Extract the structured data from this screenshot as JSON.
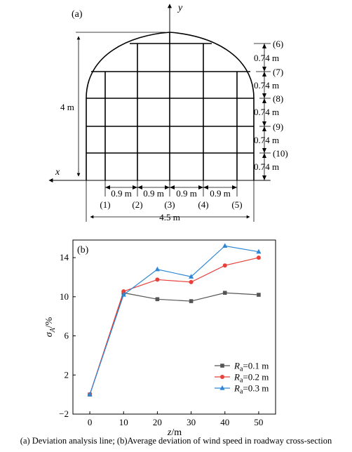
{
  "caption": "(a) Deviation analysis line; (b)Average deviation of wind speed in roadway cross-section",
  "panel_a": {
    "label": "(a)",
    "axis_y": "y",
    "axis_x": "x",
    "height_label": "4 m",
    "width_label": "4.5 m",
    "vertical_lines": [
      {
        "id": "(1)",
        "spacing_label": "0.9 m"
      },
      {
        "id": "(2)",
        "spacing_label": "0.9 m"
      },
      {
        "id": "(3)",
        "spacing_label": "0.9 m"
      },
      {
        "id": "(4)",
        "spacing_label": "0.9 m"
      },
      {
        "id": "(5)"
      }
    ],
    "horizontal_lines": [
      {
        "id": "(6)"
      },
      {
        "id": "(7)",
        "spacing_label": "0.74 m"
      },
      {
        "id": "(8)",
        "spacing_label": "0.74 m"
      },
      {
        "id": "(9)",
        "spacing_label": "0.74 m"
      },
      {
        "id": "(10)",
        "spacing_label": "0.74 m"
      }
    ],
    "bottom_spacing_label": "0.74 m"
  },
  "panel_b": {
    "label": "(b)",
    "chart_data": {
      "type": "line",
      "xlabel_main": "z",
      "xlabel_unit": "/m",
      "ylabel_main": "σ",
      "ylabel_sub": "A",
      "ylabel_unit": "/%",
      "xlim": [
        -5,
        55
      ],
      "ylim": [
        -2,
        15.8
      ],
      "xticks": [
        0,
        10,
        20,
        30,
        40,
        50
      ],
      "yticks": [
        -2,
        2,
        6,
        10,
        14
      ],
      "grid": false,
      "legend_position": "bottom-right",
      "x": [
        0,
        10,
        20,
        30,
        40,
        50
      ],
      "series": [
        {
          "name_var": "R",
          "name_sub": "a",
          "name_rest": "=0.1 m",
          "color": "#555555",
          "marker": "square",
          "values": [
            0.0,
            10.4,
            9.75,
            9.55,
            10.4,
            10.2
          ]
        },
        {
          "name_var": "R",
          "name_sub": "a",
          "name_rest": "=0.2 m",
          "color": "#e8403a",
          "marker": "circle",
          "values": [
            0.0,
            10.55,
            11.75,
            11.5,
            13.2,
            14.0
          ]
        },
        {
          "name_var": "R",
          "name_sub": "a",
          "name_rest": "=0.3 m",
          "color": "#2f86d6",
          "marker": "triangle",
          "values": [
            0.0,
            10.2,
            12.8,
            12.05,
            15.2,
            14.6
          ]
        }
      ]
    }
  }
}
